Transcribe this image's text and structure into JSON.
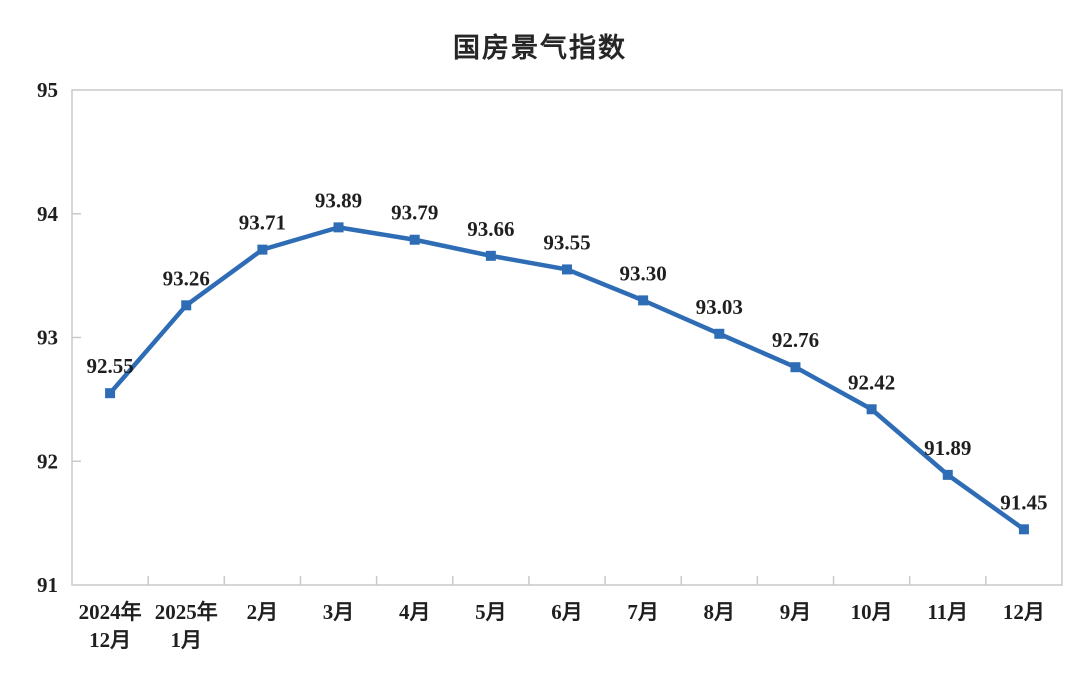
{
  "chart_data": {
    "type": "line",
    "title": "国房景气指数",
    "categories": [
      "2024年\n12月",
      "2025年\n1月",
      "2月",
      "3月",
      "4月",
      "5月",
      "6月",
      "7月",
      "8月",
      "9月",
      "10月",
      "11月",
      "12月"
    ],
    "values": [
      92.55,
      93.26,
      93.71,
      93.89,
      93.79,
      93.66,
      93.55,
      93.3,
      93.03,
      92.76,
      92.42,
      91.89,
      91.45
    ],
    "value_labels": [
      "92.55",
      "93.26",
      "93.71",
      "93.89",
      "93.79",
      "93.66",
      "93.55",
      "93.30",
      "93.03",
      "92.76",
      "92.42",
      "91.89",
      "91.45"
    ],
    "xlabel": "",
    "ylabel": "",
    "ylim": [
      91,
      95
    ],
    "yticks": [
      91,
      92,
      93,
      94,
      95
    ],
    "grid": false,
    "legend": "none",
    "marker": "square",
    "line_color": "#2E6DB5",
    "marker_color": "#2E6DB5",
    "label_color": "#1f1f1f",
    "axis_color": "#c9c9c9",
    "title_color": "#262626",
    "background_color": "#ffffff"
  }
}
